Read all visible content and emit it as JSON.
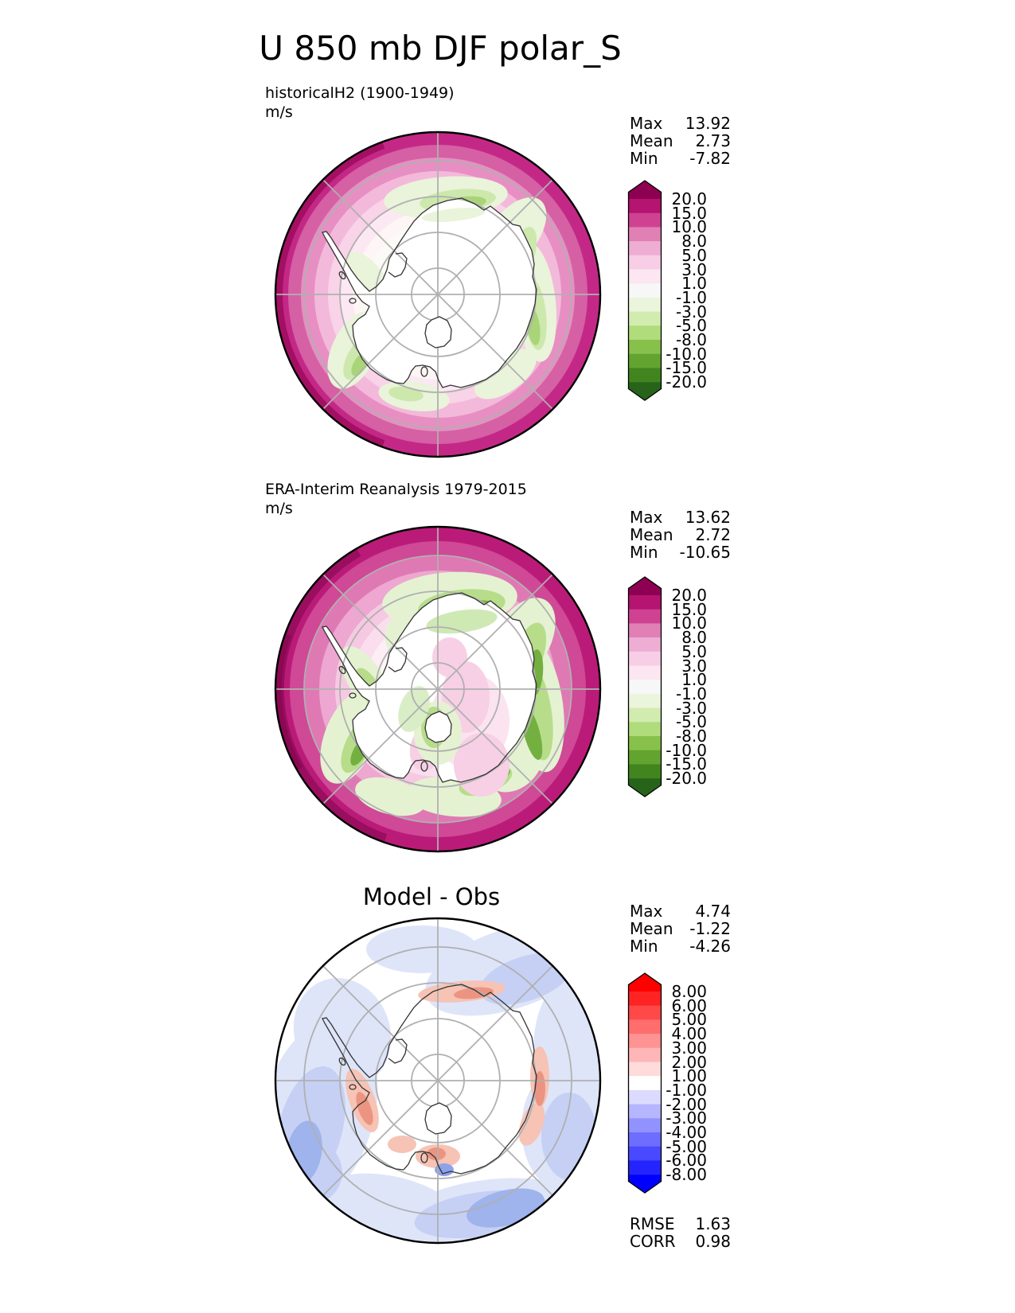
{
  "page": {
    "title": "U 850 mb DJF polar_S"
  },
  "panels": [
    {
      "caption": "historicalH2 (1900-1949)",
      "units": "m/s",
      "stats": [
        {
          "label": "Max",
          "value": "13.92"
        },
        {
          "label": "Mean",
          "value": "2.73"
        },
        {
          "label": "Min",
          "value": "-7.82"
        }
      ],
      "colorbar": {
        "ticks": [
          "20.0",
          "15.0",
          "10.0",
          "8.0",
          "5.0",
          "3.0",
          "1.0",
          "-1.0",
          "-3.0",
          "-5.0",
          "-8.0",
          "-10.0",
          "-15.0",
          "-20.0"
        ],
        "colors": [
          "#8e0152",
          "#b51471",
          "#cf4292",
          "#e080b4",
          "#eeadd3",
          "#f8cee6",
          "#fbe6f1",
          "#f7f7f7",
          "#ebf5db",
          "#d2ecb0",
          "#b0dc7c",
          "#87c14b",
          "#62a42f",
          "#42851f",
          "#276419"
        ]
      }
    },
    {
      "caption": "ERA-Interim Reanalysis 1979-2015",
      "units": "m/s",
      "stats": [
        {
          "label": "Max",
          "value": "13.62"
        },
        {
          "label": "Mean",
          "value": "2.72"
        },
        {
          "label": "Min",
          "value": "-10.65"
        }
      ],
      "colorbar": {
        "ticks": [
          "20.0",
          "15.0",
          "10.0",
          "8.0",
          "5.0",
          "3.0",
          "1.0",
          "-1.0",
          "-3.0",
          "-5.0",
          "-8.0",
          "-10.0",
          "-15.0",
          "-20.0"
        ],
        "colors": [
          "#8e0152",
          "#b51471",
          "#cf4292",
          "#e080b4",
          "#eeadd3",
          "#f8cee6",
          "#fbe6f1",
          "#f7f7f7",
          "#ebf5db",
          "#d2ecb0",
          "#b0dc7c",
          "#87c14b",
          "#62a42f",
          "#42851f",
          "#276419"
        ]
      }
    },
    {
      "caption": "Model - Obs",
      "units": "",
      "stats": [
        {
          "label": "Max",
          "value": "4.74"
        },
        {
          "label": "Mean",
          "value": "-1.22"
        },
        {
          "label": "Min",
          "value": "-4.26"
        }
      ],
      "colorbar": {
        "ticks": [
          "8.00",
          "6.00",
          "5.00",
          "4.00",
          "3.00",
          "2.00",
          "1.00",
          "-1.00",
          "-2.00",
          "-3.00",
          "-4.00",
          "-5.00",
          "-6.00",
          "-8.00"
        ],
        "colors": [
          "#ff0000",
          "#ff2424",
          "#ff4949",
          "#ff6d6d",
          "#ff9292",
          "#ffb6b6",
          "#ffdbdb",
          "#ffffff",
          "#dbdbff",
          "#b6b6ff",
          "#9292ff",
          "#6d6dff",
          "#4949ff",
          "#2424ff",
          "#0000ff"
        ]
      },
      "metrics": [
        {
          "label": "RMSE",
          "value": "1.63"
        },
        {
          "label": "CORR",
          "value": "0.98"
        }
      ]
    }
  ],
  "chart_data": [
    {
      "type": "heatmap",
      "title": "historicalH2 (1900-1949)",
      "suptitle": "U 850 mb DJF polar_S",
      "variable": "U wind at 850 mb",
      "season": "DJF",
      "projection": "south polar stereographic",
      "units": "m/s",
      "stats": {
        "max": 13.92,
        "mean": 2.73,
        "min": -7.82
      },
      "contour_levels": [
        -20,
        -15,
        -10,
        -8,
        -5,
        -3,
        -1,
        1,
        3,
        5,
        8,
        10,
        15,
        20
      ],
      "colormap": "magenta-pink-white-green (PiYG style), positive=pink, negative=green",
      "legend_position": "right"
    },
    {
      "type": "heatmap",
      "title": "ERA-Interim Reanalysis 1979-2015",
      "variable": "U wind at 850 mb",
      "season": "DJF",
      "projection": "south polar stereographic",
      "units": "m/s",
      "stats": {
        "max": 13.62,
        "mean": 2.72,
        "min": -10.65
      },
      "contour_levels": [
        -20,
        -15,
        -10,
        -8,
        -5,
        -3,
        -1,
        1,
        3,
        5,
        8,
        10,
        15,
        20
      ],
      "colormap": "magenta-pink-white-green (PiYG style), positive=pink, negative=green",
      "legend_position": "right"
    },
    {
      "type": "heatmap",
      "title": "Model - Obs",
      "variable": "U wind difference at 850 mb",
      "season": "DJF",
      "projection": "south polar stereographic",
      "units": "m/s",
      "stats": {
        "max": 4.74,
        "mean": -1.22,
        "min": -4.26
      },
      "metrics": {
        "RMSE": 1.63,
        "CORR": 0.98
      },
      "contour_levels": [
        -8,
        -6,
        -5,
        -4,
        -3,
        -2,
        -1,
        1,
        2,
        3,
        4,
        5,
        6,
        8
      ],
      "colormap": "red-white-blue (bwr style), positive=red, negative=blue",
      "legend_position": "right"
    }
  ]
}
